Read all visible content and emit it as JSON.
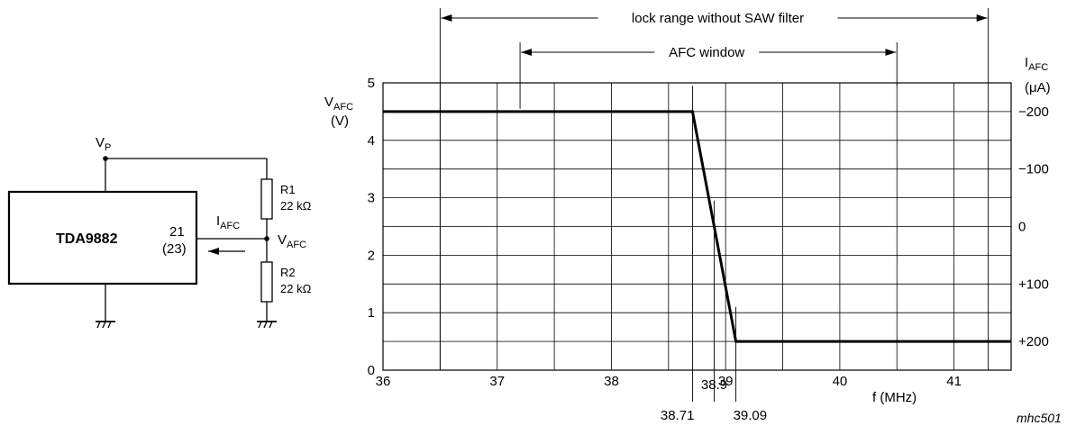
{
  "circuit": {
    "ic_name": "TDA9882",
    "pin_number": "21",
    "pin_alt": "(23)",
    "supply_label": {
      "main": "V",
      "sub": "P"
    },
    "current_label": {
      "main": "I",
      "sub": "AFC"
    },
    "node_label": {
      "main": "V",
      "sub": "AFC"
    },
    "r1": {
      "name": "R1",
      "value": "22 kΩ"
    },
    "r2": {
      "name": "R2",
      "value": "22 kΩ"
    }
  },
  "chart_data": {
    "type": "line",
    "x": [
      36,
      38.71,
      39.09,
      41.5
    ],
    "series": [
      {
        "values": [
          4.5,
          4.5,
          0.5,
          0.5
        ],
        "color": "#000000"
      }
    ],
    "xlim": [
      36,
      41.5
    ],
    "ylim": [
      0,
      5
    ],
    "x_ticks": [
      "36",
      "37",
      "38",
      "39",
      "40",
      "41"
    ],
    "y_ticks": [
      "0",
      "1",
      "2",
      "3",
      "4",
      "5"
    ],
    "right_axis": {
      "ticks": [
        {
          "label": "−200",
          "v": 4.5
        },
        {
          "label": "−100",
          "v": 3.5
        },
        {
          "label": "0",
          "v": 2.5
        },
        {
          "label": "+100",
          "v": 1.5
        },
        {
          "label": "+200",
          "v": 0.5
        }
      ],
      "label": {
        "main": "I",
        "sub": "AFC",
        "unit": "(μA)"
      }
    },
    "ylabel": {
      "main": "V",
      "sub": "AFC",
      "unit": "(V)"
    },
    "xlabel": "f (MHz)",
    "marker_labels": [
      {
        "label": "38.71",
        "x": 38.71
      },
      {
        "label": "38.9",
        "x": 38.9
      },
      {
        "label": "39.09",
        "x": 39.09
      }
    ],
    "ranges": [
      {
        "label": "lock range without SAW filter",
        "from": 36.5,
        "to": 41.3
      },
      {
        "label": "AFC window",
        "from": 37.2,
        "to": 40.5
      }
    ],
    "grid": true,
    "figure_code": "mhc501"
  }
}
